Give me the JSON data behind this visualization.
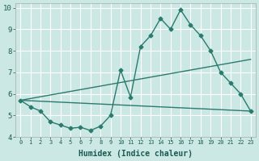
{
  "line1_x": [
    0,
    1,
    2,
    3,
    4,
    5,
    6,
    7,
    8,
    9,
    10,
    11,
    12,
    13,
    14,
    15,
    16,
    17,
    18,
    19,
    20,
    21,
    22,
    23
  ],
  "line1_y": [
    5.7,
    5.4,
    5.2,
    4.7,
    4.55,
    4.4,
    4.45,
    4.3,
    4.5,
    5.0,
    7.1,
    5.85,
    8.2,
    8.7,
    9.5,
    9.0,
    9.9,
    9.2,
    8.7,
    8.0,
    7.0,
    6.5,
    6.0,
    5.2
  ],
  "line2_x": [
    0,
    23
  ],
  "line2_y": [
    5.7,
    7.6
  ],
  "line3_x": [
    0,
    23
  ],
  "line3_y": [
    5.7,
    5.2
  ],
  "color": "#2a7a6e",
  "bg_color": "#cce8e4",
  "grid_color": "#b0d8d4",
  "xlabel": "Humidex (Indice chaleur)",
  "xlim": [
    -0.5,
    23.5
  ],
  "ylim": [
    4.0,
    10.2
  ],
  "yticks": [
    4,
    5,
    6,
    7,
    8,
    9,
    10
  ],
  "xticks": [
    0,
    1,
    2,
    3,
    4,
    5,
    6,
    7,
    8,
    9,
    10,
    11,
    12,
    13,
    14,
    15,
    16,
    17,
    18,
    19,
    20,
    21,
    22,
    23
  ],
  "marker": "D",
  "markersize": 2.5,
  "linewidth": 1.0,
  "xlabel_fontsize": 7,
  "xtick_fontsize": 5,
  "ytick_fontsize": 6.5
}
